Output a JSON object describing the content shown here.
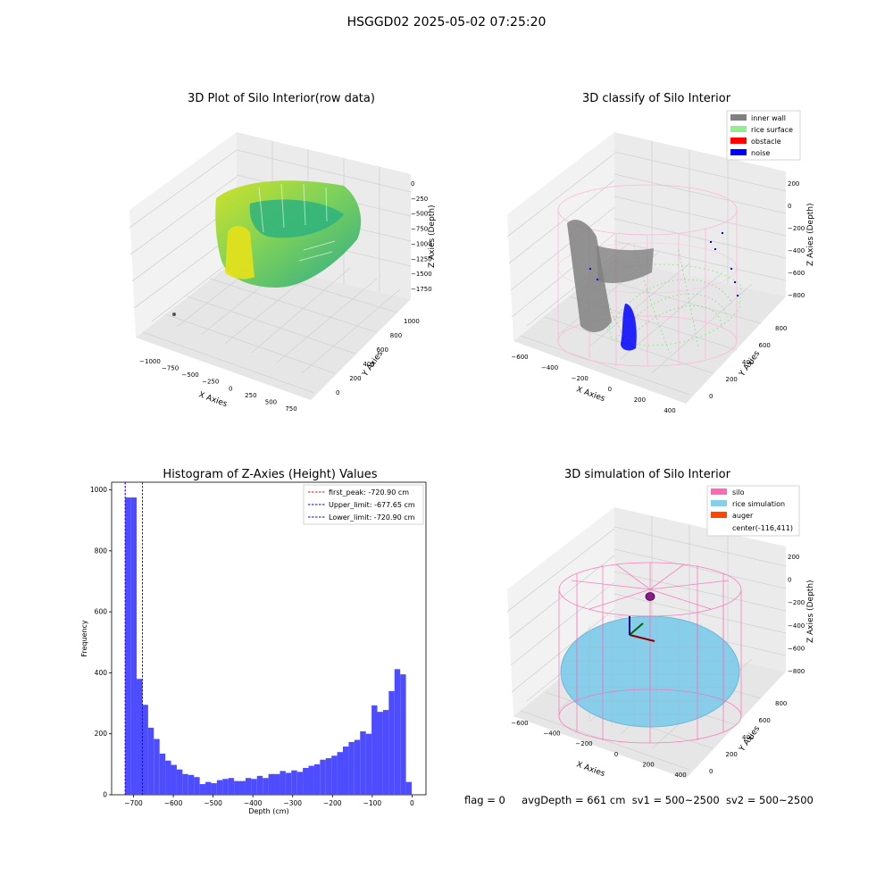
{
  "suptitle": "HSGGD02 2025-05-02 07:25:20",
  "footer": {
    "flag": "flag = 0",
    "avg_depth": "avgDepth = 661 cm",
    "sv1": "sv1 = 500~2500",
    "sv2": "sv2 = 500~2500"
  },
  "colors": {
    "inner_wall": "#808080",
    "rice_surface": "#90ee90",
    "obstacle": "#ff0000",
    "noise": "#0000ff",
    "silo": "#ff69b4",
    "rice_simulation": "#87ceeb",
    "auger": "#ff4500",
    "hist_bar": "#4d4dff",
    "first_peak": "#ff0000",
    "limits": "#0000ff"
  },
  "chart_data": [
    {
      "type": "scatter",
      "panel": "raw",
      "title": "3D Plot of Silo Interior(row data)",
      "xlabel": "X Axies",
      "ylabel": "Y Axies",
      "zlabel": "Z Axies (Depth)",
      "x_ticks": [
        "−1000",
        "−750",
        "−500",
        "−250",
        "0",
        "250",
        "500",
        "750"
      ],
      "y_ticks": [
        "0",
        "200",
        "400",
        "600",
        "800",
        "1000"
      ],
      "z_ticks": [
        "0",
        "−250",
        "−500",
        "−750",
        "−1000",
        "−1250",
        "−1500",
        "−1750"
      ],
      "colormap": "viridis"
    },
    {
      "type": "scatter",
      "panel": "classify",
      "title": "3D classify of Silo Interior",
      "xlabel": "X Axies",
      "ylabel": "Y Axies",
      "zlabel": "Z Axies (Depth)",
      "x_ticks": [
        "−600",
        "−400",
        "−200",
        "0",
        "200",
        "400"
      ],
      "y_ticks": [
        "0",
        "200",
        "400",
        "600",
        "800"
      ],
      "z_ticks": [
        "200",
        "0",
        "−200",
        "−400",
        "−600",
        "−800"
      ],
      "legend": [
        "inner wall",
        "rice surface",
        "obstacle",
        "noise"
      ],
      "legend_position": "top-right"
    },
    {
      "type": "bar",
      "panel": "histogram",
      "title": "Histogram of Z-Axies (Height) Values",
      "xlabel": "Depth (cm)",
      "ylabel": "Frequency",
      "xlim": [
        -755,
        35
      ],
      "ylim": [
        0,
        1025
      ],
      "x_ticks": [
        -700,
        -600,
        -500,
        -400,
        -300,
        -200,
        -100,
        0
      ],
      "x_tick_labels": [
        "−700",
        "−600",
        "−500",
        "−400",
        "−300",
        "−200",
        "−100",
        "0"
      ],
      "y_ticks": [
        0,
        200,
        400,
        600,
        800,
        1000
      ],
      "bin_start": -720.9,
      "bin_width": 14.4,
      "values": [
        975,
        975,
        380,
        295,
        220,
        183,
        135,
        112,
        98,
        83,
        68,
        65,
        58,
        35,
        42,
        38,
        48,
        52,
        55,
        45,
        45,
        55,
        52,
        62,
        55,
        68,
        68,
        78,
        72,
        80,
        75,
        88,
        95,
        100,
        115,
        120,
        128,
        140,
        158,
        173,
        180,
        208,
        200,
        293,
        272,
        278,
        340,
        412,
        395,
        42
      ],
      "vlines": [
        {
          "label": "first_peak: -720.90 cm",
          "x": -720.9,
          "color": "#ff0000"
        },
        {
          "label": "Upper_limit: -677.65 cm",
          "x": -677.65,
          "color": "#0000ff"
        },
        {
          "label": "Lower_limit: -720.90 cm",
          "x": -720.9,
          "color": "#0000ff"
        }
      ],
      "legend_position": "top-right"
    },
    {
      "type": "surface",
      "panel": "simulation",
      "title": "3D simulation of Silo Interior",
      "xlabel": "X Axies",
      "ylabel": "Y Axies",
      "zlabel": "Z Axies (Depth)",
      "x_ticks": [
        "−600",
        "−400",
        "−200",
        "0",
        "200",
        "400"
      ],
      "y_ticks": [
        "0",
        "200",
        "400",
        "600",
        "800"
      ],
      "z_ticks": [
        "200",
        "0",
        "−200",
        "−400",
        "−600",
        "−800"
      ],
      "legend": [
        "silo",
        "rice simulation",
        "auger",
        "center(-116,411)"
      ],
      "legend_position": "top-right"
    }
  ]
}
